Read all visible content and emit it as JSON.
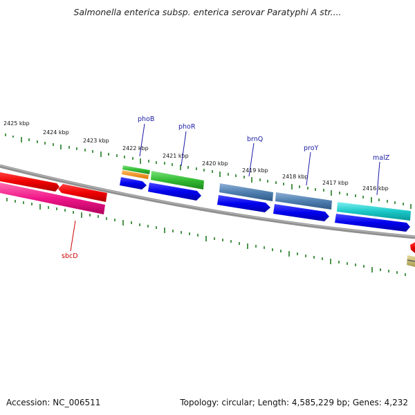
{
  "title": "Salmonella enterica subsp. enterica serovar Paratyphi A str....",
  "footer": {
    "accession": "Accession: NC_006511",
    "stats": "Topology: circular; Length: 4,585,229 bp; Genes: 4,232"
  },
  "colors": {
    "backbone": "#808080",
    "tick": "#1f7a1f",
    "gene_label_blue": "#1a1aa6",
    "gene_label_red": "#cc0000"
  },
  "ruler_labels": [
    "2425 kbp",
    "2424 kbp",
    "2423 kbp",
    "2422 kbp",
    "2421 kbp",
    "2420 kbp",
    "2419 kbp",
    "2418 kbp",
    "2417 kbp",
    "2416 kbp"
  ],
  "gene_labels": [
    "phoB",
    "phoR",
    "brnQ",
    "proY",
    "malZ",
    "sbcD"
  ]
}
